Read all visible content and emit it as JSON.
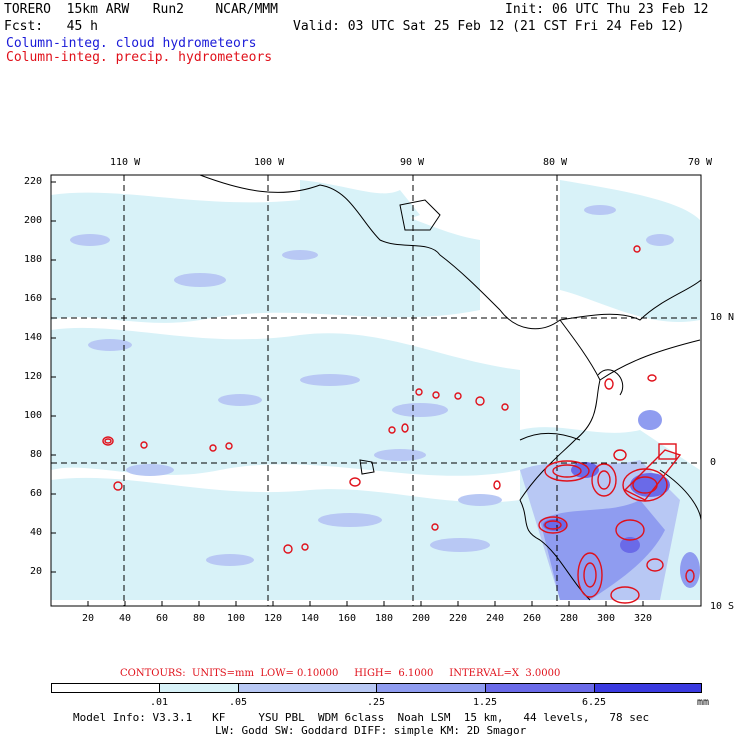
{
  "header": {
    "line1_left": "TORERO  15km ARW   Run2    NCAR/MMM",
    "line1_right": "Init: 06 UTC Thu 23 Feb 12",
    "line2_left": "Fcst:   45 h",
    "line2_right": "Valid: 03 UTC Sat 25 Feb 12 (21 CST Fri 24 Feb 12)",
    "field_cloud": "Column-integ. cloud hydrometeors",
    "field_precip": "Column-integ. precip. hydrometeors"
  },
  "map": {
    "lon_labels": [
      "110 W",
      "100 W",
      "90 W",
      "80 W",
      "70 W"
    ],
    "lat_labels": [
      "10 N",
      "0",
      "10 S"
    ],
    "y_ticks": [
      "220",
      "200",
      "180",
      "160",
      "140",
      "120",
      "100",
      "80",
      "60",
      "40",
      "20"
    ],
    "x_ticks": [
      "20",
      "40",
      "60",
      "80",
      "100",
      "120",
      "140",
      "160",
      "180",
      "200",
      "220",
      "240",
      "260",
      "280",
      "300",
      "320"
    ]
  },
  "contour_info": {
    "label": "CONTOURS:  UNITS=mm  LOW= 0.10000     HIGH=  6.1000     INTERVAL=X  3.0000"
  },
  "colorbar": {
    "labels": [
      ".01",
      ".05",
      ".25",
      "1.25",
      "6.25"
    ],
    "units": "mm",
    "colors": [
      "#ffffff",
      "#d8f2f8",
      "#b8c8f4",
      "#8f9cf0",
      "#6a6ae8",
      "#3a3ae0",
      "#1414e6"
    ]
  },
  "footer": {
    "line1": "Model Info: V3.3.1   KF     YSU PBL  WDM 6class  Noah LSM  15 km,   44 levels,   78 sec",
    "line2": "LW: Godd SW: Goddard DIFF: simple KM: 2D Smagor"
  }
}
